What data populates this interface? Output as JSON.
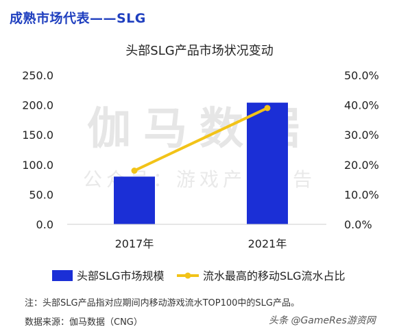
{
  "header": {
    "title": "成熟市场代表——SLG"
  },
  "watermark": {
    "main": "伽马数据",
    "sub": "公众号：游戏产业报告"
  },
  "chart_data": {
    "type": "bar",
    "title": "头部SLG产品市场状况变动",
    "categories": [
      "2017年",
      "2021年"
    ],
    "series": [
      {
        "name": "头部SLG市场规模",
        "kind": "bar",
        "axis": "left",
        "color": "#1b2fd6",
        "values": [
          80.0,
          204.0
        ]
      },
      {
        "name": "流水最高的移动SLG流水占比",
        "kind": "line",
        "axis": "right",
        "color": "#f2c318",
        "values": [
          18.0,
          39.0
        ]
      }
    ],
    "left_axis": {
      "min": 0,
      "max": 250,
      "ticks": [
        "0.0",
        "50.0",
        "100.0",
        "150.0",
        "200.0",
        "250.0"
      ]
    },
    "right_axis": {
      "min": 0,
      "max": 50,
      "ticks": [
        "0.0%",
        "10.0%",
        "20.0%",
        "30.0%",
        "40.0%",
        "50.0%"
      ]
    },
    "legend_position": "bottom"
  },
  "notes": {
    "line1": "注：头部SLG产品指对应期间内移动游戏流水TOP100中的SLG产品。",
    "line2": "数据来源：伽马数据（CNG）"
  },
  "source_badge": "头条 @GameRes游资网"
}
